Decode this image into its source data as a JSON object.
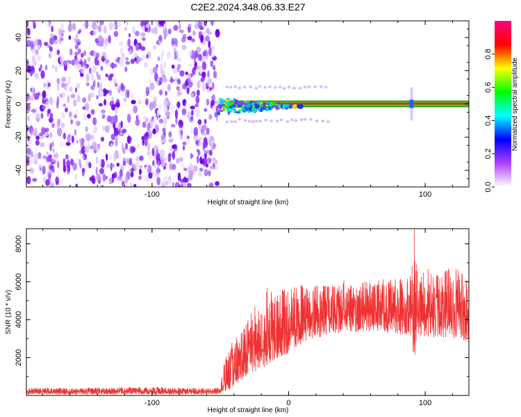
{
  "title": "C2E2.2024.348.06.33.E27",
  "chart_data": [
    {
      "type": "heatmap",
      "xlabel": "Height of straight line (km)",
      "ylabel": "Frequency (Hz)",
      "xlim": [
        -192,
        132
      ],
      "ylim": [
        -50,
        50
      ],
      "x_ticks": [
        -100,
        0,
        100
      ],
      "x_tick_labels": [
        "-100",
        "",
        "100"
      ],
      "y_ticks": [
        -40,
        -20,
        0,
        20,
        40
      ],
      "y_tick_labels": [
        "-40",
        "-20",
        "0",
        "20",
        "40"
      ],
      "colorbar": {
        "label": "Normalized spectral amplitude",
        "range": [
          0,
          1
        ],
        "ticks": [
          0.0,
          0.2,
          0.4,
          0.6,
          0.8
        ],
        "tick_labels": [
          "0.0",
          "0.2",
          "0.4",
          "0.6",
          "0.8"
        ],
        "colors": [
          "#ffffff",
          "#b040ff",
          "#0000ff",
          "#00ffff",
          "#00ff00",
          "#ffff00",
          "#ff0000",
          "#ff0080"
        ]
      },
      "noise_region_x": [
        -192,
        -52
      ],
      "transition_region_x": [
        -52,
        10
      ],
      "carrier_frequency": 0,
      "carrier_band_hz": [
        -2,
        2
      ],
      "sidebands_hz": [
        10,
        -10
      ],
      "satellite_line_x": 90,
      "grid": false
    },
    {
      "type": "line",
      "xlabel": "Height of straight line (km)",
      "ylabel": "SNR (10 * v/v)",
      "xlim": [
        -192,
        132
      ],
      "ylim": [
        0,
        8800
      ],
      "x_ticks": [
        -100,
        0,
        100
      ],
      "x_tick_labels": [
        "-100",
        "0",
        "100"
      ],
      "y_ticks": [
        2000,
        4000,
        6000,
        8000
      ],
      "y_tick_labels": [
        "2000",
        "4000",
        "6000",
        "8000"
      ],
      "series": [
        {
          "color": "#ee3333",
          "x": [
            -192,
            -150,
            -100,
            -60,
            -55,
            -50,
            -45,
            -40,
            -35,
            -30,
            -25,
            -20,
            -15,
            -10,
            -5,
            0,
            5,
            10,
            20,
            30,
            40,
            50,
            60,
            70,
            80,
            85,
            90,
            92,
            95,
            100,
            110,
            120,
            132
          ],
          "y": [
            200,
            200,
            200,
            200,
            200,
            250,
            700,
            1300,
            1700,
            1900,
            2100,
            2400,
            2800,
            3000,
            3200,
            3400,
            3700,
            3800,
            4000,
            4200,
            4300,
            4300,
            4300,
            4400,
            4400,
            4400,
            4300,
            4300,
            4300,
            4300,
            4300,
            4300,
            4300
          ],
          "band_low": [
            50,
            50,
            50,
            50,
            50,
            80,
            200,
            400,
            600,
            900,
            1100,
            1300,
            1600,
            1800,
            2000,
            2200,
            2500,
            2700,
            3000,
            3200,
            3300,
            3300,
            3300,
            3300,
            3200,
            3200,
            3100,
            1500,
            3100,
            3100,
            3000,
            3000,
            2800
          ],
          "band_high": [
            400,
            400,
            450,
            380,
            380,
            600,
            2600,
            3000,
            3300,
            4000,
            4700,
            4800,
            5800,
            5400,
            5800,
            5600,
            6000,
            5900,
            5900,
            5800,
            6100,
            6000,
            6100,
            6200,
            6300,
            6200,
            6400,
            8800,
            6400,
            6800,
            6300,
            6900,
            6200
          ]
        }
      ],
      "grid": false
    }
  ]
}
